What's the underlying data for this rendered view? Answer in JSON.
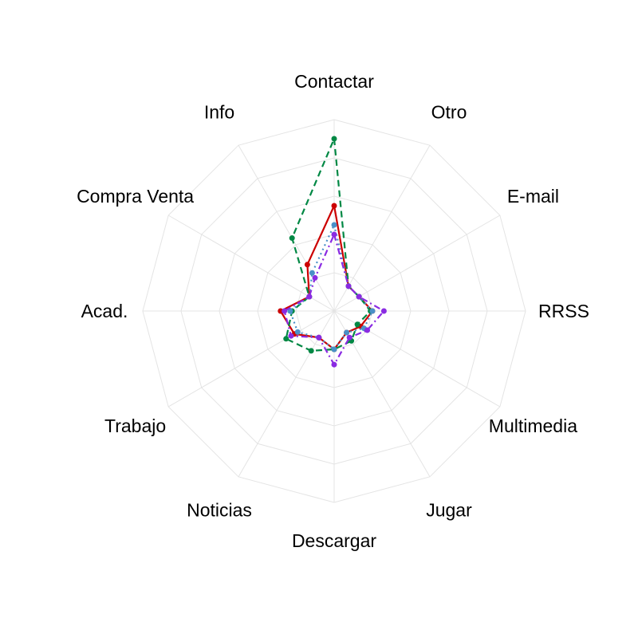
{
  "chart_data": {
    "type": "radar",
    "title": "",
    "categories": [
      "Contactar",
      "Otro",
      "E-mail",
      "RRSS",
      "Multimedia",
      "Jugar",
      "Descargar",
      "Noticias",
      "Trabajo",
      "Acad.",
      "Compra Venta",
      "Info"
    ],
    "rlim": [
      0,
      1
    ],
    "grid_levels": [
      0.2,
      0.4,
      0.6,
      0.8,
      1.0
    ],
    "grid": true,
    "legend": "none",
    "series": [
      {
        "color": "#cc0000",
        "dash": "solid",
        "values": [
          0.55,
          0.15,
          0.15,
          0.2,
          0.16,
          0.13,
          0.2,
          0.16,
          0.24,
          0.28,
          0.15,
          0.28
        ]
      },
      {
        "color": "#008844",
        "dash": "dashed",
        "values": [
          0.9,
          0.15,
          0.15,
          0.19,
          0.14,
          0.18,
          0.2,
          0.24,
          0.29,
          0.22,
          0.15,
          0.44
        ]
      },
      {
        "color": "#4a90c8",
        "dash": "dotted",
        "values": [
          0.45,
          0.15,
          0.15,
          0.2,
          0.18,
          0.13,
          0.2,
          0.16,
          0.22,
          0.23,
          0.15,
          0.23
        ]
      },
      {
        "color": "#8a2be2",
        "dash": "dashdot",
        "values": [
          0.4,
          0.15,
          0.15,
          0.26,
          0.2,
          0.16,
          0.28,
          0.16,
          0.26,
          0.26,
          0.15,
          0.2
        ]
      }
    ]
  }
}
